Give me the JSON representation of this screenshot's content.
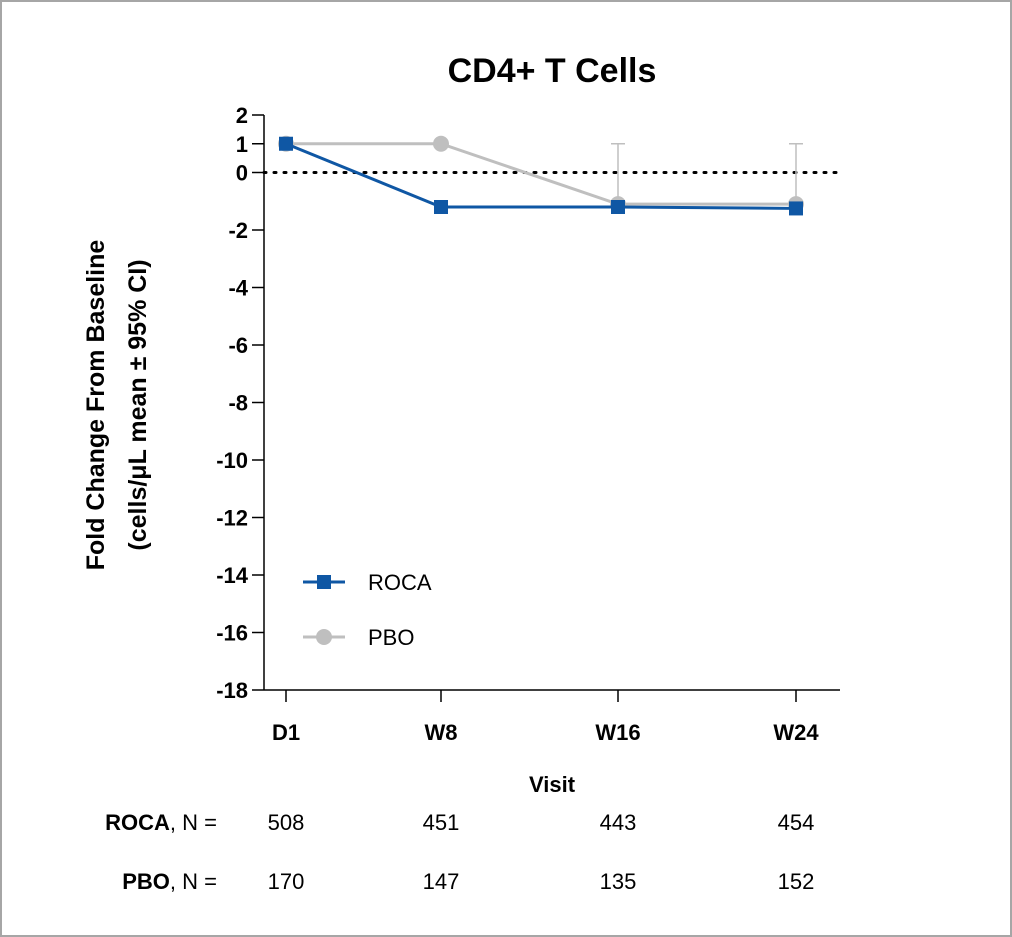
{
  "chart_data": {
    "type": "line",
    "title": "CD4+ T Cells",
    "xlabel": "Visit",
    "ylabel_line1": "Fold Change From Baseline",
    "ylabel_line2": "(cells/μL mean ± 95% CI)",
    "categories": [
      "D1",
      "W8",
      "W16",
      "W24"
    ],
    "ylim": [
      -18,
      2
    ],
    "yticks": [
      2,
      1,
      0,
      -2,
      -4,
      -6,
      -8,
      -10,
      -12,
      -14,
      -16,
      -18
    ],
    "reference_line": 0,
    "series": [
      {
        "name": "ROCA",
        "color": "#0f57a4",
        "marker": "square",
        "values": [
          1,
          -1.2,
          -1.2,
          -1.25
        ],
        "ci_upper": [
          1,
          -1,
          -1,
          -1
        ],
        "ci_lower": [
          1,
          -1.2,
          -1.2,
          -1.25
        ]
      },
      {
        "name": "PBO",
        "color": "#bfbfbf",
        "marker": "circle",
        "values": [
          1,
          1,
          -1.1,
          -1.1
        ],
        "ci_upper": [
          1,
          1,
          1,
          1
        ],
        "ci_lower": [
          1,
          1,
          -1.1,
          -1.1
        ]
      }
    ],
    "legend_position": "lower-left"
  },
  "n_table": {
    "rows": [
      {
        "bold": "ROCA",
        "suffix": ", N =",
        "values": [
          "508",
          "451",
          "443",
          "454"
        ]
      },
      {
        "bold": "PBO",
        "suffix": ", N =",
        "values": [
          "170",
          "147",
          "135",
          "152"
        ]
      }
    ]
  }
}
